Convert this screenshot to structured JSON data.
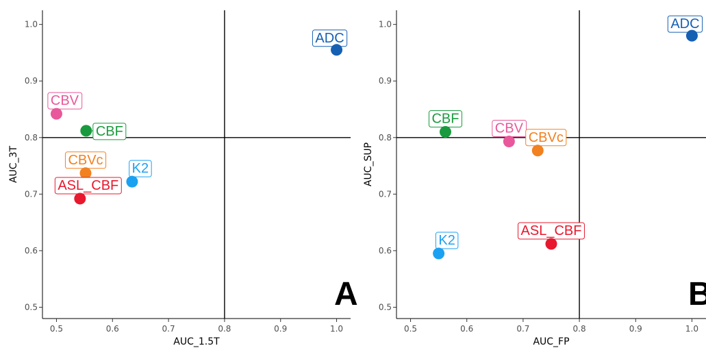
{
  "chart_data": [
    {
      "type": "scatter",
      "xlabel": "AUC_1.5T",
      "ylabel": "AUC_3T",
      "xlim": [
        0.475,
        1.025
      ],
      "ylim": [
        0.48,
        1.025
      ],
      "xticks": [
        0.5,
        0.6,
        0.7,
        0.8,
        0.9,
        1.0
      ],
      "xtick_labels": [
        "0.5",
        "0.6",
        "0.7",
        "0.8",
        "0.9",
        "1.0"
      ],
      "yticks": [
        0.5,
        0.6,
        0.7,
        0.8,
        0.9,
        1.0
      ],
      "ytick_labels": [
        "0.5",
        "0.6",
        "0.7",
        "0.8",
        "0.9",
        "1.0"
      ],
      "reference_lines": {
        "x": 0.8,
        "y": 0.8
      },
      "panel_tag": "A",
      "grid": false,
      "points": [
        {
          "label": "ADC",
          "x": 1.0,
          "y": 0.955,
          "color": "#1560b3",
          "label_pos": "above-left"
        },
        {
          "label": "CBV",
          "x": 0.5,
          "y": 0.842,
          "color": "#e8589a",
          "label_pos": "above-right"
        },
        {
          "label": "CBF",
          "x": 0.553,
          "y": 0.812,
          "color": "#1a9a3e",
          "label_pos": "right"
        },
        {
          "label": "CBVc",
          "x": 0.552,
          "y": 0.737,
          "color": "#f28120",
          "label_pos": "above"
        },
        {
          "label": "K2",
          "x": 0.635,
          "y": 0.722,
          "color": "#1ba1f2",
          "label_pos": "above-right"
        },
        {
          "label": "ASL_CBF",
          "x": 0.542,
          "y": 0.692,
          "color": "#e8182e",
          "label_pos": "above-right"
        }
      ]
    },
    {
      "type": "scatter",
      "xlabel": "AUC_FP",
      "ylabel": "AUC_SUP",
      "xlim": [
        0.475,
        1.025
      ],
      "ylim": [
        0.48,
        1.025
      ],
      "xticks": [
        0.5,
        0.6,
        0.7,
        0.8,
        0.9,
        1.0
      ],
      "xtick_labels": [
        "0.5",
        "0.6",
        "0.7",
        "0.8",
        "0.9",
        "1.0"
      ],
      "yticks": [
        0.5,
        0.6,
        0.7,
        0.8,
        0.9,
        1.0
      ],
      "ytick_labels": [
        "0.5",
        "0.6",
        "0.7",
        "0.8",
        "0.9",
        "1.0"
      ],
      "reference_lines": {
        "x": 0.8,
        "y": 0.8
      },
      "panel_tag": "B",
      "grid": false,
      "points": [
        {
          "label": "ADC",
          "x": 1.0,
          "y": 0.98,
          "color": "#1560b3",
          "label_pos": "above-left"
        },
        {
          "label": "CBF",
          "x": 0.562,
          "y": 0.81,
          "color": "#1a9a3e",
          "label_pos": "above"
        },
        {
          "label": "CBV",
          "x": 0.675,
          "y": 0.793,
          "color": "#e8589a",
          "label_pos": "above"
        },
        {
          "label": "CBVc",
          "x": 0.726,
          "y": 0.777,
          "color": "#f28120",
          "label_pos": "above-right"
        },
        {
          "label": "ASL_CBF",
          "x": 0.75,
          "y": 0.612,
          "color": "#e8182e",
          "label_pos": "above"
        },
        {
          "label": "K2",
          "x": 0.55,
          "y": 0.595,
          "color": "#1ba1f2",
          "label_pos": "above-right"
        }
      ]
    }
  ]
}
